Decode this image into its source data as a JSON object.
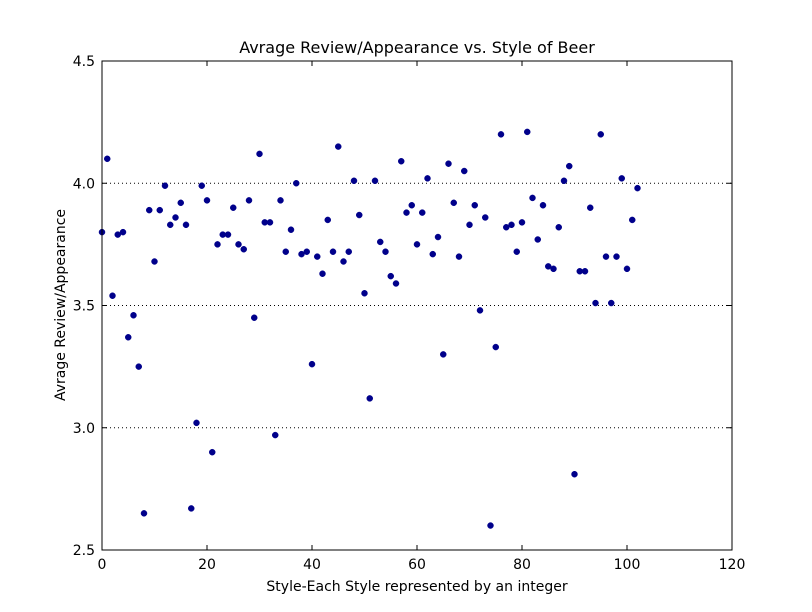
{
  "chart_data": {
    "type": "scatter",
    "title": "Avrage Review/Appearance vs. Style of Beer",
    "xlabel": "Style-Each Style represented by an integer",
    "ylabel": "Avrage Review/Appearance",
    "xlim": [
      0,
      120
    ],
    "ylim": [
      2.5,
      4.5
    ],
    "xticks": [
      0,
      20,
      40,
      60,
      80,
      100,
      120
    ],
    "yticks": [
      2.5,
      3.0,
      3.5,
      4.0,
      4.5
    ],
    "xtick_labels": [
      "0",
      "20",
      "40",
      "60",
      "80",
      "100",
      "120"
    ],
    "ytick_labels": [
      "2.5",
      "3.0",
      "3.5",
      "4.0",
      "4.5"
    ],
    "grid": "horizontal dotted",
    "marker_color": "#00008b",
    "points": [
      [
        0,
        3.8
      ],
      [
        1,
        4.1
      ],
      [
        2,
        3.54
      ],
      [
        3,
        3.79
      ],
      [
        4,
        3.8
      ],
      [
        5,
        3.37
      ],
      [
        6,
        3.46
      ],
      [
        7,
        3.25
      ],
      [
        8,
        2.65
      ],
      [
        9,
        3.89
      ],
      [
        10,
        3.68
      ],
      [
        11,
        3.89
      ],
      [
        12,
        3.99
      ],
      [
        13,
        3.83
      ],
      [
        14,
        3.86
      ],
      [
        15,
        3.92
      ],
      [
        16,
        3.83
      ],
      [
        17,
        2.67
      ],
      [
        18,
        3.02
      ],
      [
        19,
        3.99
      ],
      [
        20,
        3.93
      ],
      [
        21,
        2.9
      ],
      [
        22,
        3.75
      ],
      [
        23,
        3.79
      ],
      [
        24,
        3.79
      ],
      [
        25,
        3.9
      ],
      [
        26,
        3.75
      ],
      [
        27,
        3.73
      ],
      [
        28,
        3.93
      ],
      [
        29,
        3.45
      ],
      [
        30,
        4.12
      ],
      [
        31,
        3.84
      ],
      [
        32,
        3.84
      ],
      [
        33,
        2.97
      ],
      [
        34,
        3.93
      ],
      [
        35,
        3.72
      ],
      [
        36,
        3.81
      ],
      [
        37,
        4.0
      ],
      [
        38,
        3.71
      ],
      [
        39,
        3.72
      ],
      [
        40,
        3.26
      ],
      [
        41,
        3.7
      ],
      [
        42,
        3.63
      ],
      [
        43,
        3.85
      ],
      [
        44,
        3.72
      ],
      [
        45,
        4.15
      ],
      [
        46,
        3.68
      ],
      [
        47,
        3.72
      ],
      [
        48,
        4.01
      ],
      [
        49,
        3.87
      ],
      [
        50,
        3.55
      ],
      [
        51,
        3.12
      ],
      [
        52,
        4.01
      ],
      [
        53,
        3.76
      ],
      [
        54,
        3.72
      ],
      [
        55,
        3.62
      ],
      [
        56,
        3.59
      ],
      [
        57,
        4.09
      ],
      [
        58,
        3.88
      ],
      [
        59,
        3.91
      ],
      [
        60,
        3.75
      ],
      [
        61,
        3.88
      ],
      [
        62,
        4.02
      ],
      [
        63,
        3.71
      ],
      [
        64,
        3.78
      ],
      [
        65,
        3.3
      ],
      [
        66,
        4.08
      ],
      [
        67,
        3.92
      ],
      [
        68,
        3.7
      ],
      [
        69,
        4.05
      ],
      [
        70,
        3.83
      ],
      [
        71,
        3.91
      ],
      [
        72,
        3.48
      ],
      [
        73,
        3.86
      ],
      [
        74,
        2.6
      ],
      [
        75,
        3.33
      ],
      [
        76,
        4.2
      ],
      [
        77,
        3.82
      ],
      [
        78,
        3.83
      ],
      [
        79,
        3.72
      ],
      [
        80,
        3.84
      ],
      [
        81,
        4.21
      ],
      [
        82,
        3.94
      ],
      [
        83,
        3.77
      ],
      [
        84,
        3.91
      ],
      [
        85,
        3.66
      ],
      [
        86,
        3.65
      ],
      [
        87,
        3.82
      ],
      [
        88,
        4.01
      ],
      [
        89,
        4.07
      ],
      [
        90,
        2.81
      ],
      [
        91,
        3.64
      ],
      [
        92,
        3.64
      ],
      [
        93,
        3.9
      ],
      [
        94,
        3.51
      ],
      [
        95,
        4.2
      ],
      [
        96,
        3.7
      ],
      [
        97,
        3.51
      ],
      [
        98,
        3.7
      ],
      [
        99,
        4.02
      ],
      [
        100,
        3.65
      ],
      [
        101,
        3.85
      ],
      [
        102,
        3.98
      ]
    ]
  }
}
